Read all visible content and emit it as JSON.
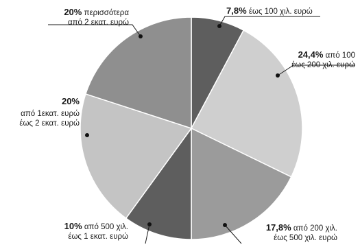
{
  "chart_data": {
    "type": "pie",
    "title": "",
    "start_angle_deg": 0,
    "direction": "clockwise",
    "slices": [
      {
        "value": 7.8,
        "pct_label": "7,8%",
        "label_lines": [
          "έως 100 χιλ. ευρώ"
        ],
        "color": "#5e5e5e"
      },
      {
        "value": 24.4,
        "pct_label": "24,4%",
        "label_lines": [
          "από 100",
          "έως 200 χιλ. ευρώ"
        ],
        "color": "#cfcfcf"
      },
      {
        "value": 17.8,
        "pct_label": "17,8%",
        "label_lines": [
          "από 200 χιλ.",
          "έως 500 χιλ. ευρώ"
        ],
        "color": "#9b9b9b"
      },
      {
        "value": 10,
        "pct_label": "10%",
        "label_lines": [
          "από 500 χιλ.",
          "έως 1 εκατ. ευρώ"
        ],
        "color": "#5e5e5e"
      },
      {
        "value": 20,
        "pct_label": "20%",
        "label_lines": [
          "από 1εκατ. ευρώ",
          "έως 2 εκατ. ευρώ"
        ],
        "color": "#c4c4c4"
      },
      {
        "value": 20,
        "pct_label": "20%",
        "label_lines": [
          "περισσότερα",
          "από 2 εκατ. ευρώ"
        ],
        "color": "#8f8f8f"
      }
    ]
  }
}
